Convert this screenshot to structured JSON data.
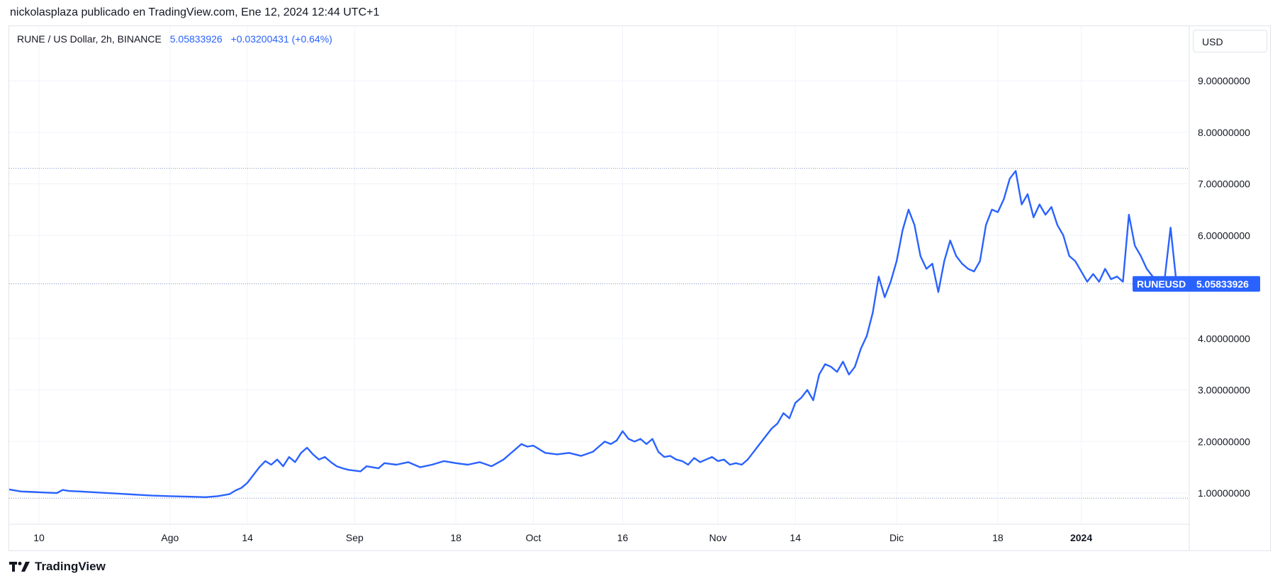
{
  "header": {
    "text": "nickolasplaza publicado en TradingView.com, Ene 12, 2024 12:44 UTC+1"
  },
  "legend": {
    "symbol": "RUNE / US Dollar, 2h, BINANCE",
    "price": "5.05833926",
    "change": "+0.03200431 (+0.64%)"
  },
  "currency": {
    "label": "USD"
  },
  "price_tag": {
    "symbol": "RUNEUSD",
    "value": "5.05833926"
  },
  "footer": {
    "brand": "TradingView"
  },
  "colors": {
    "line": "#2962ff",
    "grid": "#f0f3fa",
    "axis_text": "#131722",
    "dotted": "#7f8fc4"
  },
  "chart_data": {
    "type": "line",
    "title": "RUNE / US Dollar, 2h, BINANCE",
    "xlabel": "",
    "ylabel": "",
    "ylim": [
      0.45,
      9.9
    ],
    "y_ticks": [
      "1.00000000",
      "2.00000000",
      "3.00000000",
      "4.00000000",
      "6.00000000",
      "7.00000000",
      "8.00000000",
      "9.00000000"
    ],
    "x_ticks": [
      {
        "label": "10",
        "date": "2023-07-10",
        "bold": false
      },
      {
        "label": "Ago",
        "date": "2023-08-01",
        "bold": false
      },
      {
        "label": "14",
        "date": "2023-08-14",
        "bold": false
      },
      {
        "label": "Sep",
        "date": "2023-09-01",
        "bold": false
      },
      {
        "label": "18",
        "date": "2023-09-18",
        "bold": false
      },
      {
        "label": "Oct",
        "date": "2023-10-01",
        "bold": false
      },
      {
        "label": "16",
        "date": "2023-10-16",
        "bold": false
      },
      {
        "label": "Nov",
        "date": "2023-11-01",
        "bold": false
      },
      {
        "label": "14",
        "date": "2023-11-14",
        "bold": false
      },
      {
        "label": "Dic",
        "date": "2023-12-01",
        "bold": false
      },
      {
        "label": "18",
        "date": "2023-12-18",
        "bold": false
      },
      {
        "label": "2024",
        "date": "2024-01-01",
        "bold": true
      }
    ],
    "x_range": [
      "2023-07-05",
      "2024-01-17"
    ],
    "grid": true,
    "reference_lines": [
      7.3,
      5.06,
      0.9
    ],
    "last_value": 5.05833926,
    "series": [
      {
        "values": [
          [
            "2023-07-05",
            1.07
          ],
          [
            "2023-07-06",
            1.05
          ],
          [
            "2023-07-07",
            1.03
          ],
          [
            "2023-07-09",
            1.02
          ],
          [
            "2023-07-11",
            1.01
          ],
          [
            "2023-07-13",
            1.0
          ],
          [
            "2023-07-14",
            1.06
          ],
          [
            "2023-07-15",
            1.04
          ],
          [
            "2023-07-17",
            1.03
          ],
          [
            "2023-07-20",
            1.01
          ],
          [
            "2023-07-23",
            0.99
          ],
          [
            "2023-07-26",
            0.97
          ],
          [
            "2023-07-29",
            0.95
          ],
          [
            "2023-08-01",
            0.94
          ],
          [
            "2023-08-04",
            0.93
          ],
          [
            "2023-08-07",
            0.92
          ],
          [
            "2023-08-09",
            0.94
          ],
          [
            "2023-08-11",
            0.98
          ],
          [
            "2023-08-12",
            1.05
          ],
          [
            "2023-08-13",
            1.1
          ],
          [
            "2023-08-14",
            1.2
          ],
          [
            "2023-08-15",
            1.35
          ],
          [
            "2023-08-16",
            1.5
          ],
          [
            "2023-08-17",
            1.62
          ],
          [
            "2023-08-18",
            1.55
          ],
          [
            "2023-08-19",
            1.65
          ],
          [
            "2023-08-20",
            1.52
          ],
          [
            "2023-08-21",
            1.7
          ],
          [
            "2023-08-22",
            1.6
          ],
          [
            "2023-08-23",
            1.78
          ],
          [
            "2023-08-24",
            1.88
          ],
          [
            "2023-08-25",
            1.75
          ],
          [
            "2023-08-26",
            1.65
          ],
          [
            "2023-08-27",
            1.7
          ],
          [
            "2023-08-28",
            1.6
          ],
          [
            "2023-08-29",
            1.52
          ],
          [
            "2023-08-30",
            1.48
          ],
          [
            "2023-08-31",
            1.45
          ],
          [
            "2023-09-02",
            1.42
          ],
          [
            "2023-09-03",
            1.52
          ],
          [
            "2023-09-05",
            1.48
          ],
          [
            "2023-09-06",
            1.58
          ],
          [
            "2023-09-08",
            1.55
          ],
          [
            "2023-09-10",
            1.6
          ],
          [
            "2023-09-12",
            1.5
          ],
          [
            "2023-09-14",
            1.55
          ],
          [
            "2023-09-16",
            1.62
          ],
          [
            "2023-09-18",
            1.58
          ],
          [
            "2023-09-20",
            1.55
          ],
          [
            "2023-09-22",
            1.6
          ],
          [
            "2023-09-24",
            1.52
          ],
          [
            "2023-09-26",
            1.65
          ],
          [
            "2023-09-27",
            1.75
          ],
          [
            "2023-09-28",
            1.85
          ],
          [
            "2023-09-29",
            1.95
          ],
          [
            "2023-09-30",
            1.9
          ],
          [
            "2023-10-01",
            1.92
          ],
          [
            "2023-10-02",
            1.85
          ],
          [
            "2023-10-03",
            1.78
          ],
          [
            "2023-10-05",
            1.75
          ],
          [
            "2023-10-07",
            1.78
          ],
          [
            "2023-10-09",
            1.72
          ],
          [
            "2023-10-11",
            1.8
          ],
          [
            "2023-10-12",
            1.9
          ],
          [
            "2023-10-13",
            2.0
          ],
          [
            "2023-10-14",
            1.95
          ],
          [
            "2023-10-15",
            2.02
          ],
          [
            "2023-10-16",
            2.2
          ],
          [
            "2023-10-17",
            2.05
          ],
          [
            "2023-10-18",
            2.0
          ],
          [
            "2023-10-19",
            2.05
          ],
          [
            "2023-10-20",
            1.95
          ],
          [
            "2023-10-21",
            2.05
          ],
          [
            "2023-10-22",
            1.8
          ],
          [
            "2023-10-23",
            1.7
          ],
          [
            "2023-10-24",
            1.72
          ],
          [
            "2023-10-25",
            1.65
          ],
          [
            "2023-10-26",
            1.62
          ],
          [
            "2023-10-27",
            1.55
          ],
          [
            "2023-10-28",
            1.68
          ],
          [
            "2023-10-29",
            1.6
          ],
          [
            "2023-10-30",
            1.65
          ],
          [
            "2023-10-31",
            1.7
          ],
          [
            "2023-11-01",
            1.62
          ],
          [
            "2023-11-02",
            1.65
          ],
          [
            "2023-11-03",
            1.55
          ],
          [
            "2023-11-04",
            1.58
          ],
          [
            "2023-11-05",
            1.55
          ],
          [
            "2023-11-06",
            1.65
          ],
          [
            "2023-11-07",
            1.8
          ],
          [
            "2023-11-08",
            1.95
          ],
          [
            "2023-11-09",
            2.1
          ],
          [
            "2023-11-10",
            2.25
          ],
          [
            "2023-11-11",
            2.35
          ],
          [
            "2023-11-12",
            2.55
          ],
          [
            "2023-11-13",
            2.45
          ],
          [
            "2023-11-14",
            2.75
          ],
          [
            "2023-11-15",
            2.85
          ],
          [
            "2023-11-16",
            3.0
          ],
          [
            "2023-11-17",
            2.8
          ],
          [
            "2023-11-18",
            3.3
          ],
          [
            "2023-11-19",
            3.5
          ],
          [
            "2023-11-20",
            3.45
          ],
          [
            "2023-11-21",
            3.35
          ],
          [
            "2023-11-22",
            3.55
          ],
          [
            "2023-11-23",
            3.3
          ],
          [
            "2023-11-24",
            3.45
          ],
          [
            "2023-11-25",
            3.8
          ],
          [
            "2023-11-26",
            4.05
          ],
          [
            "2023-11-27",
            4.5
          ],
          [
            "2023-11-28",
            5.2
          ],
          [
            "2023-11-29",
            4.8
          ],
          [
            "2023-11-30",
            5.1
          ],
          [
            "2023-12-01",
            5.5
          ],
          [
            "2023-12-02",
            6.1
          ],
          [
            "2023-12-03",
            6.5
          ],
          [
            "2023-12-04",
            6.2
          ],
          [
            "2023-12-05",
            5.6
          ],
          [
            "2023-12-06",
            5.35
          ],
          [
            "2023-12-07",
            5.45
          ],
          [
            "2023-12-08",
            4.9
          ],
          [
            "2023-12-09",
            5.5
          ],
          [
            "2023-12-10",
            5.9
          ],
          [
            "2023-12-11",
            5.6
          ],
          [
            "2023-12-12",
            5.45
          ],
          [
            "2023-12-13",
            5.35
          ],
          [
            "2023-12-14",
            5.3
          ],
          [
            "2023-12-15",
            5.5
          ],
          [
            "2023-12-16",
            6.2
          ],
          [
            "2023-12-17",
            6.5
          ],
          [
            "2023-12-18",
            6.45
          ],
          [
            "2023-12-19",
            6.7
          ],
          [
            "2023-12-20",
            7.1
          ],
          [
            "2023-12-21",
            7.25
          ],
          [
            "2023-12-22",
            6.6
          ],
          [
            "2023-12-23",
            6.8
          ],
          [
            "2023-12-24",
            6.35
          ],
          [
            "2023-12-25",
            6.6
          ],
          [
            "2023-12-26",
            6.4
          ],
          [
            "2023-12-27",
            6.55
          ],
          [
            "2023-12-28",
            6.2
          ],
          [
            "2023-12-29",
            6.0
          ],
          [
            "2023-12-30",
            5.6
          ],
          [
            "2023-12-31",
            5.5
          ],
          [
            "2024-01-01",
            5.3
          ],
          [
            "2024-01-02",
            5.1
          ],
          [
            "2024-01-03",
            5.25
          ],
          [
            "2024-01-04",
            5.1
          ],
          [
            "2024-01-05",
            5.35
          ],
          [
            "2024-01-06",
            5.15
          ],
          [
            "2024-01-07",
            5.2
          ],
          [
            "2024-01-08",
            5.1
          ],
          [
            "2024-01-09",
            6.4
          ],
          [
            "2024-01-10",
            5.8
          ],
          [
            "2024-01-11",
            5.6
          ],
          [
            "2024-01-12",
            5.35
          ],
          [
            "2024-01-13",
            5.2
          ],
          [
            "2024-01-14",
            5.1
          ],
          [
            "2024-01-15",
            5.15
          ],
          [
            "2024-01-16",
            6.15
          ],
          [
            "2024-01-17",
            5.06
          ]
        ]
      }
    ]
  }
}
